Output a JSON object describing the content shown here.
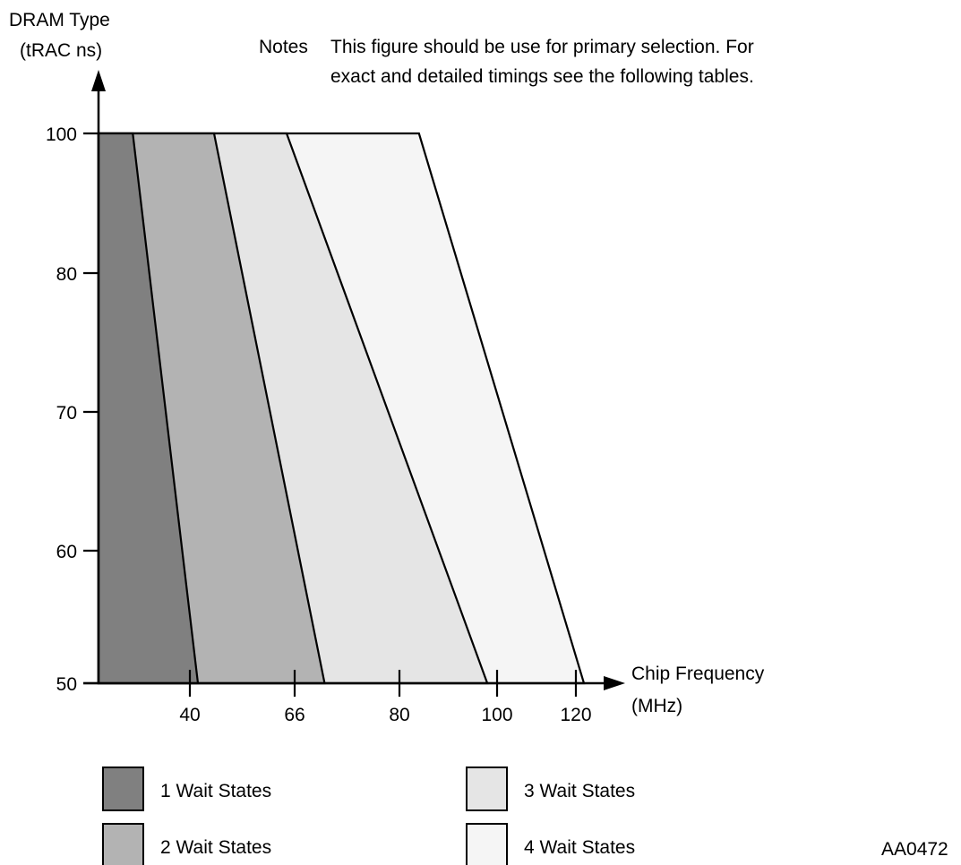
{
  "chart_data": {
    "type": "area",
    "ylabel_line1": "DRAM Type",
    "ylabel_line2": "(tRAC ns)",
    "xlabel_line1": "Chip Frequency",
    "xlabel_line2": "(MHz)",
    "notes_label": "Notes",
    "notes_line1": "This figure should be use for primary selection. For",
    "notes_line2": "exact and detailed timings see the following tables.",
    "figure_id": "AA0472",
    "y_ticks": [
      50,
      60,
      70,
      80,
      100
    ],
    "x_ticks": [
      40,
      66,
      80,
      100,
      120
    ],
    "legend_position": "bottom",
    "regions": [
      {
        "name": "1 Wait States",
        "color": "#808080",
        "boundary_at_100ns_x": 30,
        "boundary_at_50ns_x": 42
      },
      {
        "name": "2 Wait States",
        "color": "#b3b3b3",
        "boundary_at_100ns_x": 46,
        "boundary_at_50ns_x": 70
      },
      {
        "name": "3 Wait States",
        "color": "#e5e5e5",
        "boundary_at_100ns_x": 64,
        "boundary_at_50ns_x": 98
      },
      {
        "name": "4 Wait States",
        "color": "#f5f5f5",
        "boundary_at_100ns_x": 84,
        "boundary_at_50ns_x": 122
      }
    ]
  }
}
